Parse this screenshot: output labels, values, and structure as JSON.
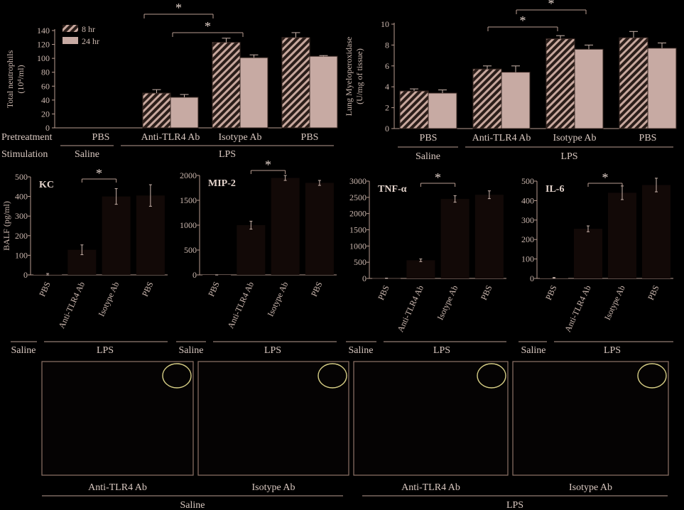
{
  "colors": {
    "background": "#000000",
    "axis": "#b89c90",
    "text": "#d9c8c0",
    "bar_8hr": "#c7a79d",
    "bar_24hr": "#c7aaa3",
    "inset_circle": "#d8cf86"
  },
  "chart_data": [
    {
      "id": "neutrophils",
      "type": "bar",
      "ylabel": "Total neutrophils (10⁴/ml)",
      "ylim": [
        0,
        140
      ],
      "yticks": [
        "0",
        "20",
        "40",
        "60",
        "80",
        "100",
        "120",
        "140"
      ],
      "legend": [
        "8 hr",
        "24 hr"
      ],
      "legend_position": "top-left",
      "row_labels": [
        "Pretreatment",
        "Stimulation"
      ],
      "categories": [
        "PBS",
        "Anti-TLR4 Ab",
        "Isotype Ab",
        "PBS"
      ],
      "stimulation_groups": [
        "Saline",
        "LPS"
      ],
      "series": [
        {
          "name": "8 hr",
          "values": [
            0,
            50,
            123,
            130
          ],
          "errors": [
            0,
            5,
            6,
            7
          ]
        },
        {
          "name": "24 hr",
          "values": [
            0,
            44,
            101,
            103
          ],
          "errors": [
            0,
            4,
            4,
            1
          ]
        }
      ],
      "significance": [
        {
          "label": "*",
          "from": "Anti-TLR4 Ab 8 hr",
          "to": "Isotype Ab 8 hr"
        },
        {
          "label": "*",
          "from": "Anti-TLR4 Ab 24 hr",
          "to": "Isotype Ab 24 hr"
        }
      ]
    },
    {
      "id": "mpo",
      "type": "bar",
      "ylabel": "Lung Myeloperoxidase (U/mg of tissue)",
      "ylim": [
        0,
        10
      ],
      "yticks": [
        "0",
        "2",
        "4",
        "6",
        "8",
        "10"
      ],
      "categories": [
        "PBS",
        "Anti-TLR4 Ab",
        "Isotype Ab",
        "PBS"
      ],
      "stimulation_groups": [
        "Saline",
        "LPS"
      ],
      "series": [
        {
          "name": "8 hr",
          "values": [
            3.6,
            5.7,
            8.6,
            8.7
          ],
          "errors": [
            0.2,
            0.3,
            0.3,
            0.6
          ]
        },
        {
          "name": "24 hr",
          "values": [
            3.4,
            5.4,
            7.6,
            7.7
          ],
          "errors": [
            0.3,
            0.6,
            0.4,
            0.5
          ]
        }
      ],
      "significance": [
        {
          "label": "*",
          "from": "Anti-TLR4 Ab 8 hr",
          "to": "Isotype Ab 8 hr"
        },
        {
          "label": "*",
          "from": "Anti-TLR4 Ab 24 hr",
          "to": "Isotype Ab 24 hr"
        }
      ]
    },
    {
      "id": "kc",
      "type": "bar",
      "title": "KC",
      "ylabel": "BALF (pg/ml)",
      "ylim": [
        0,
        500
      ],
      "yticks": [
        "0",
        "100",
        "200",
        "300",
        "400",
        "500"
      ],
      "categories": [
        "PBS",
        "Anti-TLR4 Ab",
        "Isotype Ab",
        "PBS"
      ],
      "values": [
        3,
        128,
        400,
        405
      ],
      "errors": [
        4,
        25,
        40,
        55
      ],
      "groups": [
        "Saline",
        "LPS"
      ],
      "significance": "*"
    },
    {
      "id": "mip2",
      "type": "bar",
      "title": "MIP-2",
      "ylim": [
        0,
        2000
      ],
      "yticks": [
        "0",
        "500",
        "1000",
        "1500",
        "2000"
      ],
      "categories": [
        "PBS",
        "Anti-TLR4 Ab",
        "Isotype Ab",
        "PBS"
      ],
      "values": [
        0,
        1000,
        1950,
        1850
      ],
      "errors": [
        2,
        80,
        50,
        50
      ],
      "groups": [
        "Saline",
        "LPS"
      ],
      "significance": "*"
    },
    {
      "id": "tnf",
      "type": "bar",
      "title": "TNF-α",
      "ylim": [
        0,
        3000
      ],
      "yticks": [
        "0",
        "500",
        "1000",
        "1500",
        "2000",
        "2500",
        "3000"
      ],
      "categories": [
        "PBS",
        "Anti-TLR4 Ab",
        "Isotype Ab",
        "PBS"
      ],
      "values": [
        5,
        560,
        2450,
        2580
      ],
      "errors": [
        5,
        40,
        100,
        120
      ],
      "groups": [
        "Saline",
        "LPS"
      ],
      "significance": "*"
    },
    {
      "id": "il6",
      "type": "bar",
      "title": "IL-6",
      "ylim": [
        0,
        500
      ],
      "yticks": [
        "0",
        "100",
        "200",
        "300",
        "400",
        "500"
      ],
      "categories": [
        "PBS",
        "Anti-TLR4 Ab",
        "Isotype Ab",
        "PBS"
      ],
      "values": [
        3,
        255,
        440,
        480
      ],
      "errors": [
        2,
        15,
        35,
        35
      ],
      "groups": [
        "Saline",
        "LPS"
      ],
      "significance": "*"
    }
  ],
  "histology": {
    "panels": [
      "Anti-TLR4 Ab",
      "Isotype Ab",
      "Anti-TLR4 Ab",
      "Isotype Ab"
    ],
    "groups": [
      "Saline",
      "LPS"
    ]
  }
}
